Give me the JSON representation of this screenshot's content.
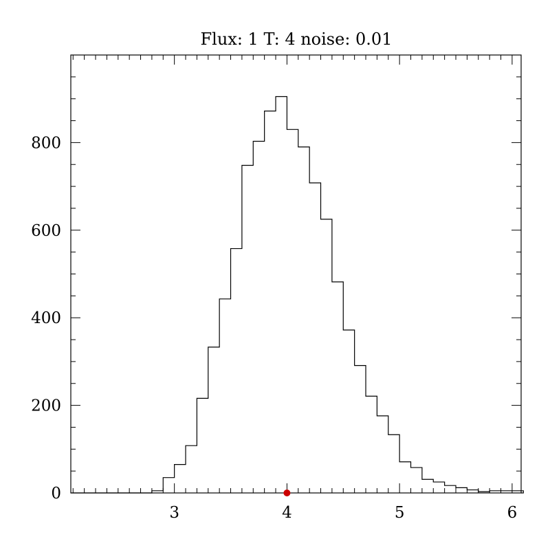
{
  "chart_data": {
    "type": "bar",
    "title": "Flux: 1 T: 4 noise: 0.01",
    "xlabel": "",
    "ylabel": "",
    "xlim": [
      2.08,
      6.08
    ],
    "ylim": [
      0,
      1000
    ],
    "x_ticks": [
      3,
      4,
      5,
      6
    ],
    "y_ticks": [
      0,
      200,
      400,
      600,
      800
    ],
    "x_minor_step": 0.1,
    "y_minor_step": 50,
    "grid": false,
    "bin_width": 0.1,
    "histogram": {
      "bin_start": 2.8,
      "bin_width": 0.1,
      "counts": [
        5,
        35,
        65,
        108,
        216,
        333,
        443,
        558,
        748,
        803,
        872,
        905,
        830,
        790,
        708,
        625,
        482,
        372,
        291,
        221,
        176,
        133,
        71,
        58,
        31,
        25,
        17,
        12,
        7,
        3,
        5,
        5,
        5
      ]
    },
    "marker": {
      "x": 4.0,
      "y": 0,
      "color": "#cc0000"
    },
    "line_color": "#000000"
  }
}
